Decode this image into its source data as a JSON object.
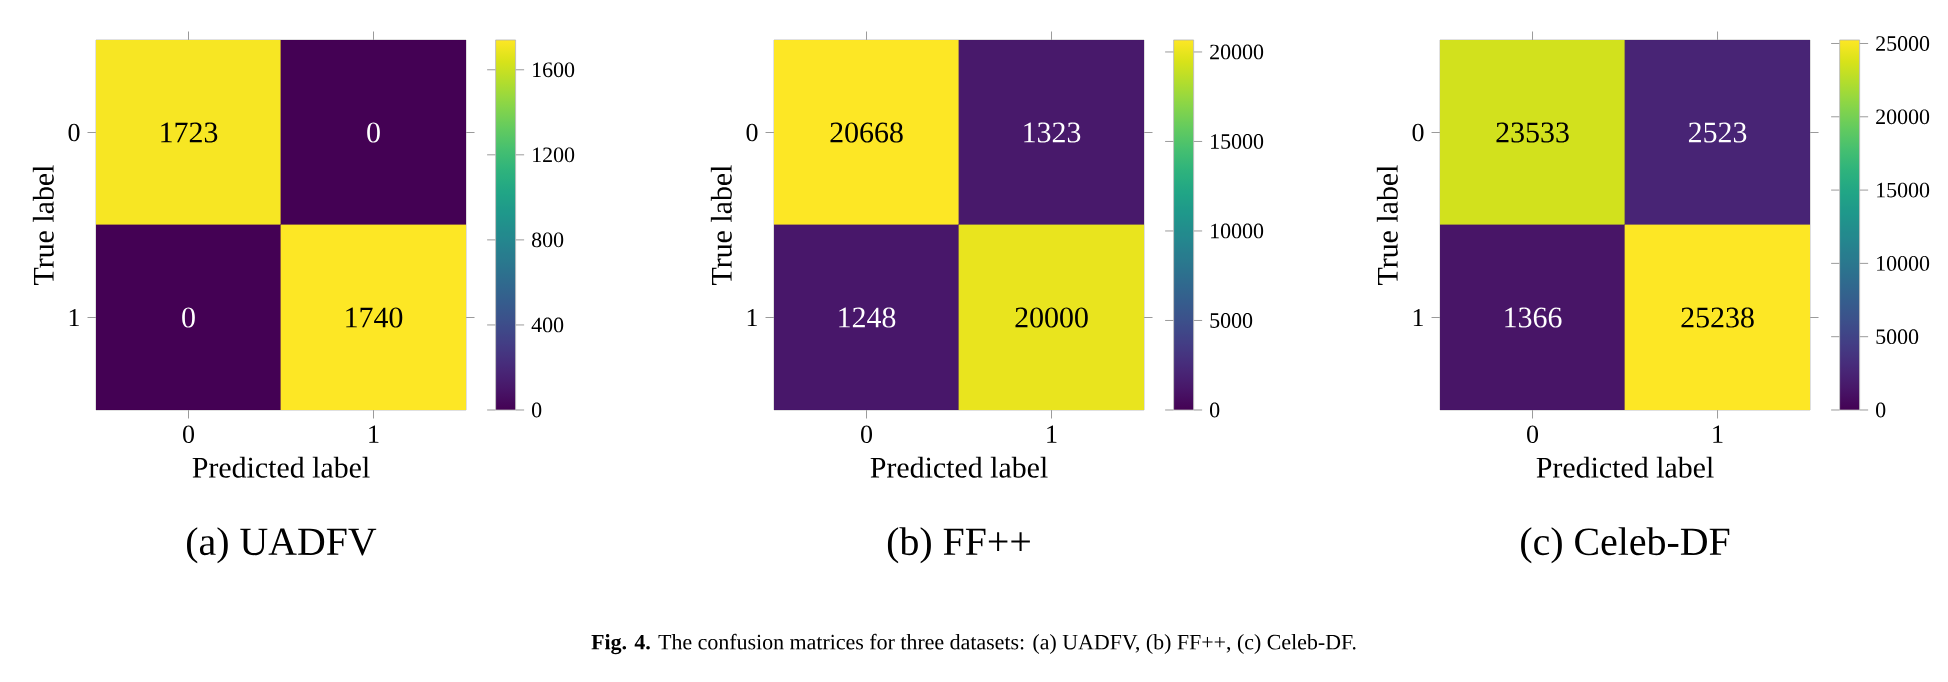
{
  "chart_data": [
    {
      "type": "heatmap",
      "title": "(a) UADFV",
      "xlabel": "Predicted label",
      "ylabel": "True label",
      "categories": [
        "0",
        "1"
      ],
      "y_categories": [
        "0",
        "1"
      ],
      "cells": [
        [
          1723,
          0
        ],
        [
          0,
          1740
        ]
      ],
      "clim": [
        0,
        1740
      ],
      "cticks": [
        0,
        400,
        800,
        1200,
        1600
      ],
      "data_labels": true,
      "annotations": [
        "**Fig. 4.** The confusion matrices for three datasets: (a) UADFV, (b) FF++, (c) Celeb-DF."
      ]
    },
    {
      "type": "heatmap",
      "title": "(b) FF++",
      "xlabel": "Predicted label",
      "ylabel": "True label",
      "categories": [
        "0",
        "1"
      ],
      "y_categories": [
        "0",
        "1"
      ],
      "cells": [
        [
          20668,
          1323
        ],
        [
          1248,
          20000
        ]
      ],
      "clim": [
        0,
        20668
      ],
      "cticks": [
        0,
        5000,
        10000,
        15000,
        20000
      ],
      "data_labels": true
    },
    {
      "type": "heatmap",
      "title": "(c) Celeb-DF",
      "xlabel": "Predicted label",
      "ylabel": "True label",
      "categories": [
        "0",
        "1"
      ],
      "y_categories": [
        "0",
        "1"
      ],
      "cells": [
        [
          23533,
          2523
        ],
        [
          1366,
          25238
        ]
      ],
      "clim": [
        0,
        25238
      ],
      "cticks": [
        0,
        5000,
        10000,
        15000,
        20000,
        25000
      ],
      "data_labels": true
    }
  ]
}
